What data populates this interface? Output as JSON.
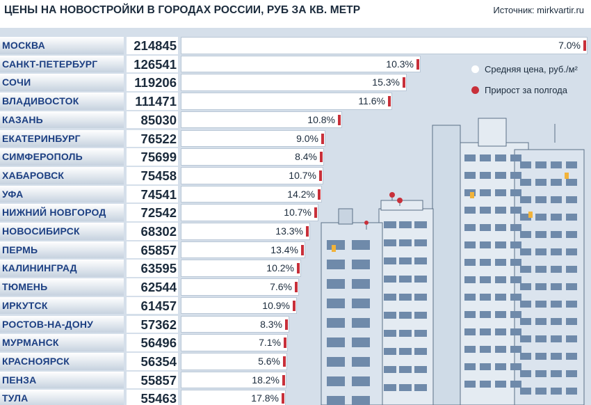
{
  "title": "ЦЕНЫ НА НОВОСТРОЙКИ В ГОРОДАХ РОССИИ, РУБ ЗА КВ. МЕТР",
  "source": "Источник: mirkvartir.ru",
  "legend": {
    "avg_label": "Средняя цена, руб./м²",
    "growth_label": "Прирост за полгода",
    "avg_color": "#ffffff",
    "growth_color": "#c8303a"
  },
  "chart_data": {
    "type": "bar",
    "orientation": "horizontal",
    "title": "ЦЕНЫ НА НОВОСТРОЙКИ В ГОРОДАХ РОССИИ, РУБ ЗА КВ. МЕТР",
    "categories": [
      "МОСКВА",
      "САНКТ-ПЕТЕРБУРГ",
      "СОЧИ",
      "ВЛАДИВОСТОК",
      "КАЗАНЬ",
      "ЕКАТЕРИНБУРГ",
      "СИМФЕРОПОЛЬ",
      "ХАБАРОВСК",
      "УФА",
      "НИЖНИЙ НОВГОРОД",
      "НОВОСИБИРСК",
      "ПЕРМЬ",
      "КАЛИНИНГРАД",
      "ТЮМЕНЬ",
      "ИРКУТСК",
      "РОСТОВ-НА-ДОНУ",
      "МУРМАНСК",
      "КРАСНОЯРСК",
      "ПЕНЗА",
      "ТУЛА"
    ],
    "series": [
      {
        "name": "Средняя цена, руб./м²",
        "values": [
          214845,
          126541,
          119206,
          111471,
          85030,
          76522,
          75699,
          75458,
          74541,
          72542,
          68302,
          65857,
          63595,
          62544,
          61457,
          57362,
          56496,
          56354,
          55857,
          55463
        ]
      },
      {
        "name": "Прирост за полгода",
        "values": [
          "7.0%",
          "10.3%",
          "15.3%",
          "11.6%",
          "10.8%",
          "9.0%",
          "8.4%",
          "10.7%",
          "14.2%",
          "10.7%",
          "13.3%",
          "13.4%",
          "10.2%",
          "7.6%",
          "10.9%",
          "8.3%",
          "7.1%",
          "5.6%",
          "18.2%",
          "17.8%"
        ]
      }
    ],
    "legend_position": "top-right",
    "grid": false
  }
}
